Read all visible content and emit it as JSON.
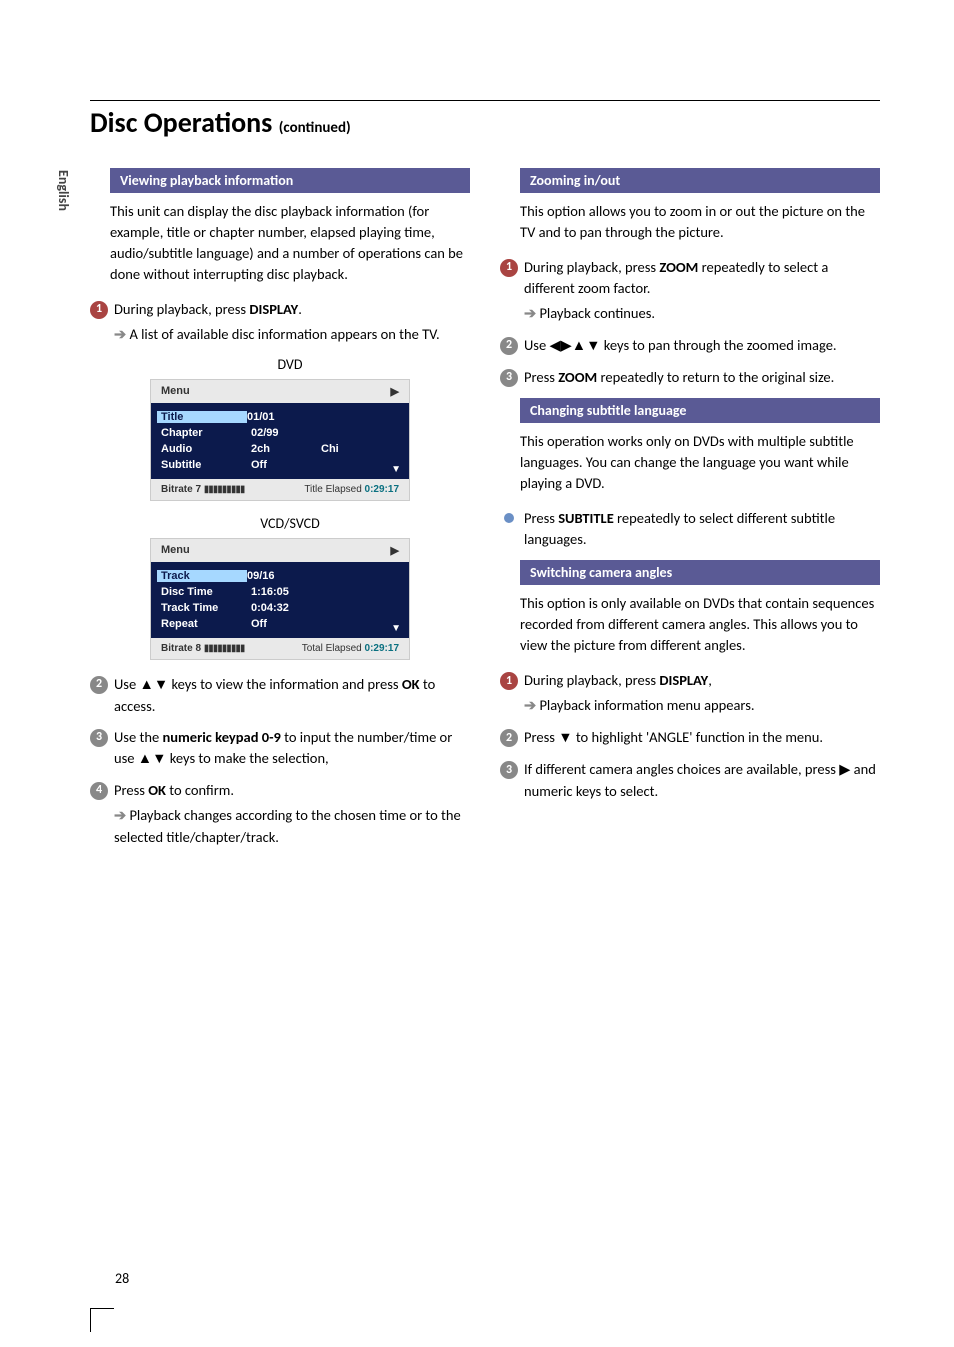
{
  "side_tab": "English",
  "title": "Disc Operations",
  "title_suffix": "(continued)",
  "page_number": "28",
  "left": {
    "section1_head": "Viewing playback information",
    "intro": "This unit can display the disc playback information (for example, title or chapter number, elapsed playing time, audio/subtitle language) and a number of operations can be done without interrupting disc playback.",
    "step1": "During playback, press ",
    "step1_b": "DISPLAY",
    "step1_tail": ".",
    "step1_arrow": "A list of available disc information appears on the TV.",
    "dvd_label": "DVD",
    "vcd_label": "VCD/SVCD",
    "step2_a": "Use ",
    "step2_keys": "▲▼",
    "step2_b": " keys to view the information and press ",
    "step2_ok": "OK",
    "step2_c": " to access.",
    "step3_a": "Use the ",
    "step3_b": "numeric keypad 0-9",
    "step3_c": " to input the number/time or use ",
    "step3_keys": "▲▼",
    "step3_d": " keys to make the selection,",
    "step4_a": "Press ",
    "step4_ok": "OK",
    "step4_b": " to confirm.",
    "step4_arrow": "Playback changes according to the chosen time or to the selected title/chapter/track."
  },
  "osd_dvd": {
    "menu": "Menu",
    "play": "▶",
    "rows": [
      {
        "k": "Title",
        "v": "01/01",
        "v2": "",
        "sel": true
      },
      {
        "k": "Chapter",
        "v": "02/99",
        "v2": ""
      },
      {
        "k": "Audio",
        "v": "2ch",
        "v2": "Chi"
      },
      {
        "k": "Subtitle",
        "v": "Off",
        "v2": ""
      }
    ],
    "foot_l_label": "Bitrate 7",
    "foot_l_bars": "▮▮▮▮▮▮▮▮▮",
    "foot_r_label": "Title Elapsed",
    "foot_r_val": "0:29:17"
  },
  "osd_vcd": {
    "menu": "Menu",
    "play": "▶",
    "rows": [
      {
        "k": "Track",
        "v": "09/16",
        "v2": "",
        "sel": true
      },
      {
        "k": "Disc Time",
        "v": "1:16:05",
        "v2": ""
      },
      {
        "k": "Track Time",
        "v": "0:04:32",
        "v2": ""
      },
      {
        "k": "Repeat",
        "v": "Off",
        "v2": ""
      }
    ],
    "foot_l_label": "Bitrate 8",
    "foot_l_bars": "▮▮▮▮▮▮▮▮▮",
    "foot_r_label": "Total Elapsed",
    "foot_r_val": "0:29:17"
  },
  "right": {
    "zoom_head": "Zooming in/out",
    "zoom_intro": "This option allows you to zoom in or out the picture on the TV and to pan through the picture.",
    "zoom_s1_a": "During playback, press ",
    "zoom_s1_b": "ZOOM",
    "zoom_s1_c": " repeatedly to select a different zoom factor.",
    "zoom_s1_arrow": "Playback continues.",
    "zoom_s2_a": "Use ",
    "zoom_s2_keys": "◀▶▲▼",
    "zoom_s2_b": " keys to pan through the zoomed image.",
    "zoom_s3_a": "Press ",
    "zoom_s3_b": "ZOOM",
    "zoom_s3_c": " repeatedly to return to the original size.",
    "sub_head": "Changing subtitle language",
    "sub_intro": "This operation works only on DVDs with multiple subtitle languages. You can change the language you want while playing a DVD.",
    "sub_bul_a": "Press ",
    "sub_bul_b": "SUBTITLE",
    "sub_bul_c": " repeatedly to select different subtitle languages.",
    "cam_head": "Switching camera angles",
    "cam_intro": "This option is only available on DVDs that contain sequences recorded from different camera angles. This allows you to view the picture from different angles.",
    "cam_s1_a": "During playback, press ",
    "cam_s1_b": "DISPLAY",
    "cam_s1_c": ",",
    "cam_s1_arrow": "Playback information menu appears.",
    "cam_s2_a": "Press ",
    "cam_s2_keys": "▼",
    "cam_s2_b": " to highlight 'ANGLE' function in the menu.",
    "cam_s3_a": "If different camera angles choices are available, press ",
    "cam_s3_keys": "▶",
    "cam_s3_b": " and numeric keys to select."
  }
}
